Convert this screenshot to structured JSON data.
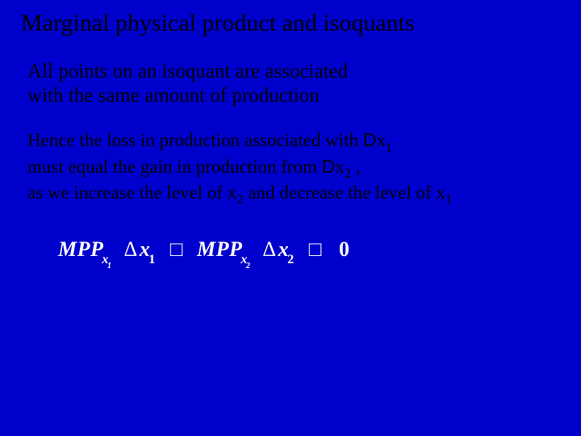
{
  "slide": {
    "background_color": "#0000cc",
    "text_color": "#000000",
    "equation_color": "#ffffff",
    "title": "Marginal physical product and isoquants",
    "title_fontsize": 30,
    "para1": {
      "line1": "All points on an isoquant are associated",
      "line2": " with the same amount of production",
      "fontsize": 25
    },
    "para2": {
      "l1a": "Hence the loss in production associated with  ",
      "l1_delta": "D",
      "l1_var": "x",
      "l1_sub": "1",
      "l2a": "must equal the gain in production from  ",
      "l2_delta": "D",
      "l2_var": "x",
      "l2_sub": "2",
      "l2_tail": " ,",
      "l3a": "as we increase the level of  x",
      "l3_sub1": "2",
      "l3_mid": " and decrease the level of x",
      "l3_sub2": "1",
      "fontsize": 23
    },
    "equation": {
      "mpp": "MPP",
      "x": "x",
      "sub1": "1",
      "sub2": "2",
      "delta": "Δ",
      "op": "□",
      "zero": "0",
      "fontsize": 26
    }
  }
}
